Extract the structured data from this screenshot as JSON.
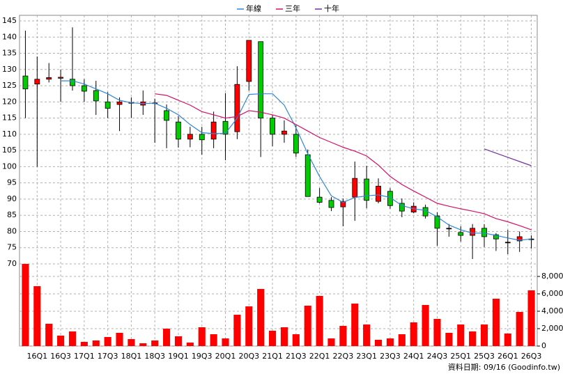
{
  "chart_data": {
    "type": "candlestick",
    "categories": [
      null,
      "16Q1",
      null,
      "16Q3",
      null,
      "17Q1",
      null,
      "17Q3",
      null,
      "18Q1",
      null,
      "18Q3",
      null,
      "19Q1",
      null,
      "19Q3",
      null,
      "20Q1",
      null,
      "20Q3",
      null,
      "21Q1",
      null,
      "21Q3",
      null,
      "22Q1",
      null,
      "22Q3",
      null,
      "23Q1",
      null,
      "23Q3",
      null,
      "24Q1",
      null,
      "24Q3",
      null,
      "25Q1",
      null,
      "25Q3",
      null,
      "26Q1",
      null,
      "26Q3"
    ],
    "open": [
      128,
      125.5,
      127,
      127.3,
      127,
      125,
      123.5,
      120,
      119.2,
      119.6,
      119,
      119.6,
      117.3,
      113.8,
      108.5,
      110,
      108.5,
      114,
      110.8,
      126.3,
      138.6,
      115,
      110,
      110,
      103.7,
      90.6,
      89.6,
      87.6,
      90.6,
      96.2,
      89.3,
      92.4,
      88.7,
      86,
      87.4,
      84.8,
      81,
      79.7,
      78.8,
      81,
      79,
      76.7,
      77.1,
      77.7
    ],
    "high": [
      142,
      134,
      132,
      130,
      143,
      127,
      126.5,
      123,
      121.4,
      121.4,
      123.5,
      121,
      119.2,
      115.6,
      112.3,
      112.3,
      117,
      122.7,
      131,
      139,
      138.6,
      116,
      114.3,
      112.8,
      105.3,
      93.4,
      90.6,
      90.2,
      101.6,
      100.3,
      96.4,
      93.4,
      90.2,
      89,
      88.3,
      85.9,
      82.3,
      81.6,
      82.3,
      82.3,
      79.5,
      80.5,
      80,
      78.8
    ],
    "low": [
      115,
      100,
      126,
      120,
      123.5,
      120,
      116,
      115,
      111,
      115,
      116,
      107.4,
      105.7,
      105.9,
      106,
      103.7,
      105.7,
      102,
      108.5,
      123.5,
      103,
      106.3,
      107.4,
      103,
      90.8,
      88.7,
      86.3,
      81.6,
      83.3,
      87.2,
      88.7,
      87,
      84.4,
      85.7,
      84,
      75.6,
      78.4,
      76.9,
      71.5,
      75.2,
      74,
      73,
      73.7,
      74.7
    ],
    "close": [
      124,
      127,
      127.5,
      127.6,
      125,
      123.3,
      120.3,
      118,
      120,
      119.8,
      120,
      119.7,
      114.3,
      108.5,
      110,
      108.3,
      113.8,
      110,
      125.4,
      139,
      115,
      110,
      111,
      104.2,
      90.8,
      89,
      87.4,
      89.3,
      96.4,
      89.6,
      94,
      88,
      86.3,
      87.8,
      84.8,
      81,
      81,
      78.8,
      81,
      78.4,
      77.7,
      76.7,
      78.4,
      77.7
    ],
    "up_color": "#ff0000",
    "down_color": "#00cc00",
    "series": [
      {
        "name": "年線",
        "color": "#2f86d8",
        "values": [
          null,
          null,
          null,
          126.5,
          126.5,
          125.5,
          124,
          122.5,
          120.5,
          119.7,
          119.5,
          119.6,
          118,
          116,
          113,
          110.5,
          110.2,
          110.3,
          115,
          122.3,
          122.5,
          122.5,
          119,
          112,
          104,
          97,
          91,
          89,
          90.5,
          91,
          91.3,
          90.5,
          88,
          87,
          86.5,
          84.5,
          82,
          80.5,
          79.5,
          79.5,
          78.8,
          78,
          77.3,
          77.7
        ]
      },
      {
        "name": "三年",
        "color": "#d0106a",
        "values": [
          null,
          null,
          null,
          null,
          null,
          null,
          null,
          null,
          null,
          null,
          null,
          122.5,
          122,
          120.5,
          119,
          117,
          116,
          115,
          115.5,
          117.3,
          116.8,
          116,
          115,
          113,
          111,
          109,
          107.5,
          106,
          104.8,
          103.3,
          100.5,
          97,
          94.5,
          92.5,
          90.6,
          88.7,
          87.8,
          87,
          86.3,
          85.5,
          84,
          83,
          81.8,
          80.5
        ]
      },
      {
        "name": "十年",
        "color": "#7030a0",
        "values": [
          null,
          null,
          null,
          null,
          null,
          null,
          null,
          null,
          null,
          null,
          null,
          null,
          null,
          null,
          null,
          null,
          null,
          null,
          null,
          null,
          null,
          null,
          null,
          null,
          null,
          null,
          null,
          null,
          null,
          null,
          null,
          null,
          null,
          null,
          null,
          null,
          null,
          null,
          null,
          105.5,
          104.2,
          102.9,
          101.6,
          100.3
        ]
      }
    ],
    "volume": {
      "color": "#ff0000",
      "axis": "y2",
      "values": [
        9440,
        6880,
        2560,
        1200,
        1680,
        480,
        640,
        1040,
        1520,
        800,
        320,
        640,
        2000,
        1120,
        400,
        2160,
        1360,
        880,
        3600,
        4560,
        6560,
        1760,
        2160,
        1360,
        4640,
        5760,
        880,
        2320,
        4880,
        2480,
        720,
        880,
        1360,
        2720,
        4720,
        3120,
        1520,
        2480,
        1680,
        2480,
        5440,
        1440,
        3920,
        6400
      ]
    },
    "ylim": [
      70,
      145
    ],
    "yticks": [
      70,
      75,
      80,
      85,
      90,
      95,
      100,
      105,
      110,
      115,
      120,
      125,
      130,
      135,
      140,
      145
    ],
    "y2lim": [
      0,
      8000
    ],
    "y2ticks": [
      0,
      {
        "value": 2000,
        "label": "2,000"
      },
      {
        "value": 4000,
        "label": "4,000"
      },
      {
        "value": 6000,
        "label": "6,000"
      },
      {
        "value": 8000,
        "label": "8,000"
      }
    ],
    "grid": true,
    "source": "資料日期: 09/16 (Goodinfo.tw)"
  }
}
